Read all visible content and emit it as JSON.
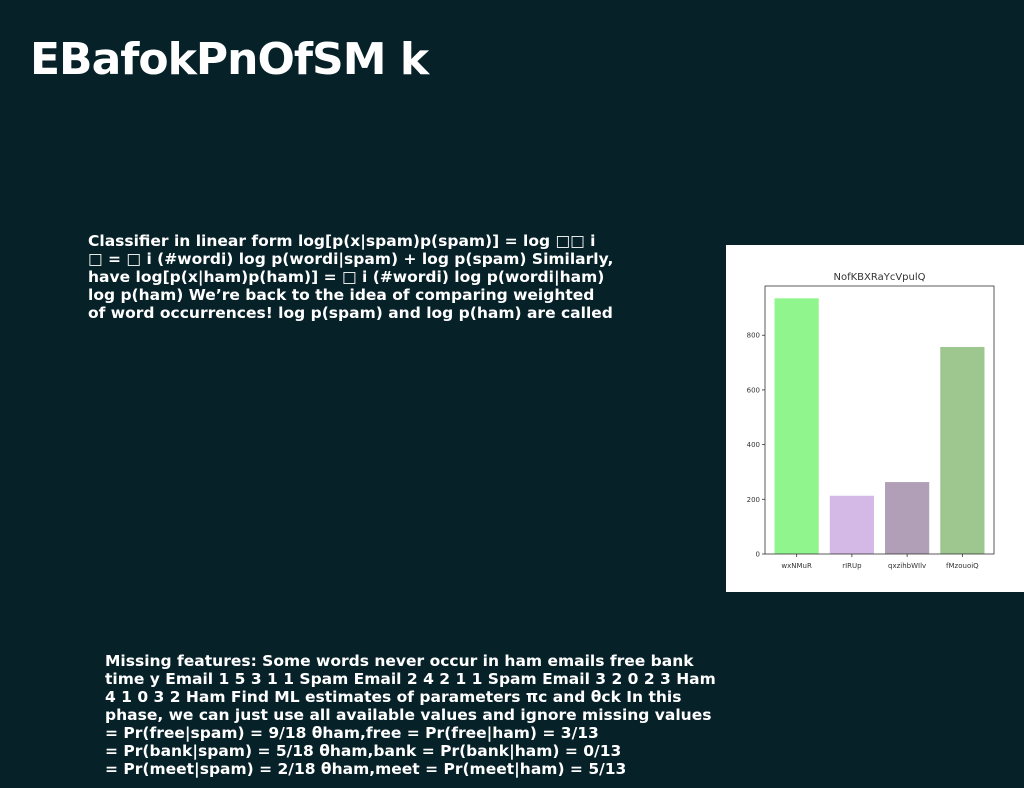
{
  "slide": {
    "title": "EBafokPnOfSM k",
    "top_text": [
      "Classifier in linear form log[p(x|spam)p(spam)] = log □□ i",
      "□ = □ i (#wordi) log p(wordi|spam) + log p(spam) Similarly,",
      "have log[p(x|ham)p(ham)] = □ i (#wordi) log p(wordi|ham)",
      "log p(ham) We’re back to the idea of comparing weighted",
      "of word occurrences! log p(spam) and log p(ham) are called"
    ],
    "bottom_text": [
      "Missing features: Some words never occur in ham emails free bank",
      "time y Email 1 5 3 1 1 Spam Email 2 4 2 1 1 Spam Email 3 2 0 2 3 Ham",
      "4 1 0 3 2 Ham Find ML estimates of parameters πc and θck In this",
      "phase, we can just use all available values and ignore missing values",
      "= Pr(free|spam) = 9/18 θham,free = Pr(free|ham) = 3/13",
      "= Pr(bank|spam) = 5/18 θham,bank = Pr(bank|ham) = 0/13",
      "= Pr(meet|spam) = 2/18 θham,meet = Pr(meet|ham) = 5/13"
    ]
  },
  "chart_data": {
    "type": "bar",
    "title": "NofKBXRaYcVpulQ",
    "xlabel": "",
    "ylabel": "",
    "categories": [
      "wxNMuR",
      "rIRUp",
      "qxzihbWIlv",
      "fMzouoiQ"
    ],
    "values": [
      935,
      213,
      263,
      757
    ],
    "colors": [
      "#90f58c",
      "#d4b8e5",
      "#b09fb7",
      "#9dc78f"
    ],
    "ylim": [
      0,
      980
    ],
    "yticks": [
      0,
      200,
      400,
      600,
      800
    ],
    "grid": false
  }
}
